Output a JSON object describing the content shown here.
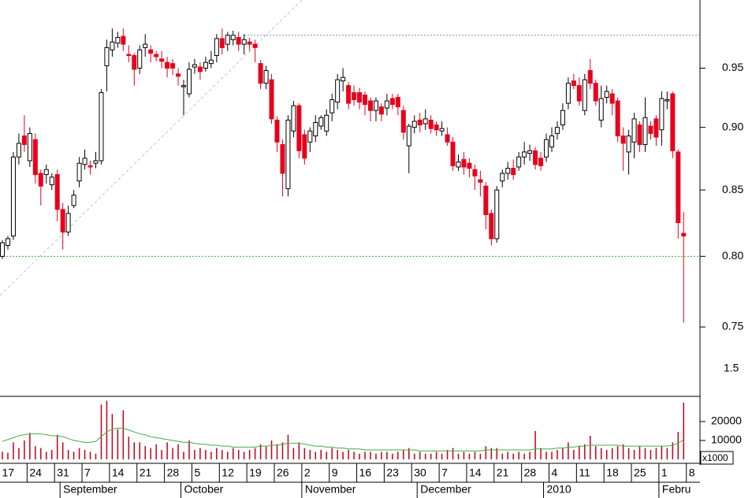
{
  "chart_data": {
    "type": "candlestick",
    "log_scale": true,
    "categories": [
      "17",
      null,
      null,
      null,
      null,
      "24",
      null,
      null,
      null,
      null,
      "31",
      null,
      null,
      null,
      null,
      "7",
      null,
      null,
      null,
      null,
      "14",
      null,
      null,
      null,
      null,
      "21",
      null,
      null,
      null,
      null,
      "28",
      null,
      null,
      null,
      null,
      "5",
      null,
      null,
      null,
      null,
      "12",
      null,
      null,
      null,
      null,
      "19",
      null,
      null,
      null,
      null,
      "26",
      null,
      null,
      null,
      null,
      "2",
      null,
      null,
      null,
      null,
      "9",
      null,
      null,
      null,
      null,
      "16",
      null,
      null,
      null,
      null,
      "23",
      null,
      null,
      null,
      null,
      "30",
      null,
      null,
      null,
      null,
      "7",
      null,
      null,
      null,
      null,
      "14",
      null,
      null,
      null,
      null,
      "21",
      null,
      null,
      null,
      null,
      "28",
      null,
      null,
      null,
      null,
      "4",
      null,
      null,
      null,
      null,
      "11",
      null,
      null,
      null,
      null,
      "18",
      null,
      null,
      null,
      null,
      "25",
      null,
      null,
      null,
      null,
      "1",
      null,
      null,
      null,
      null,
      "8"
    ],
    "month_labels": [
      null,
      null,
      null,
      null,
      null,
      null,
      null,
      null,
      null,
      null,
      null,
      "September",
      null,
      null,
      null,
      null,
      null,
      null,
      null,
      null,
      null,
      null,
      null,
      null,
      null,
      null,
      null,
      null,
      null,
      null,
      null,
      null,
      null,
      "October",
      null,
      null,
      null,
      null,
      null,
      null,
      null,
      null,
      null,
      null,
      null,
      null,
      null,
      null,
      null,
      null,
      null,
      null,
      null,
      null,
      null,
      "November",
      null,
      null,
      null,
      null,
      null,
      null,
      null,
      null,
      null,
      null,
      null,
      null,
      null,
      null,
      null,
      null,
      null,
      null,
      null,
      null,
      "December",
      null,
      null,
      null,
      null,
      null,
      null,
      null,
      null,
      null,
      null,
      null,
      null,
      null,
      null,
      null,
      null,
      null,
      null,
      null,
      null,
      null,
      null,
      "2010",
      null,
      null,
      null,
      null,
      null,
      null,
      null,
      null,
      null,
      null,
      null,
      null,
      null,
      null,
      null,
      null,
      null,
      null,
      null,
      null,
      "Febru",
      null,
      null,
      null,
      null,
      null
    ],
    "open": [
      0.8,
      0.808,
      0.815,
      0.876,
      0.893,
      0.873,
      0.89,
      0.863,
      0.862,
      0.854,
      0.862,
      0.835,
      0.818,
      0.838,
      0.857,
      0.87,
      0.869,
      0.871,
      0.873,
      0.952,
      0.966,
      0.972,
      0.978,
      0.962,
      0.961,
      0.95,
      0.968,
      0.966,
      0.962,
      0.958,
      0.955,
      0.954,
      0.945,
      0.934,
      0.928,
      0.951,
      0.951,
      0.95,
      0.954,
      0.961,
      0.976,
      0.971,
      0.975,
      0.977,
      0.971,
      0.973,
      0.971,
      0.954,
      0.937,
      0.94,
      0.906,
      0.886,
      0.851,
      0.897,
      0.918,
      0.894,
      0.888,
      0.893,
      0.901,
      0.897,
      0.912,
      0.921,
      0.939,
      0.935,
      0.929,
      0.929,
      0.927,
      0.922,
      0.914,
      0.917,
      0.916,
      0.924,
      0.925,
      0.914,
      0.885,
      0.9,
      0.906,
      0.903,
      0.906,
      0.902,
      0.897,
      0.894,
      0.888,
      0.868,
      0.874,
      0.871,
      0.866,
      0.858,
      0.853,
      0.832,
      0.813,
      0.857,
      0.863,
      0.867,
      0.868,
      0.876,
      0.879,
      0.881,
      0.875,
      0.876,
      0.884,
      0.895,
      0.902,
      0.92,
      0.939,
      0.935,
      0.914,
      0.948,
      0.937,
      0.906,
      0.925,
      0.928,
      0.922,
      0.893,
      0.88,
      0.888,
      0.902,
      0.886,
      0.901,
      0.907,
      0.898,
      0.922,
      0.928,
      0.88,
      0.817,
      null
    ],
    "high": [
      0.812,
      0.815,
      0.88,
      0.895,
      0.91,
      0.9,
      0.895,
      0.866,
      0.87,
      0.863,
      0.866,
      0.84,
      0.838,
      0.85,
      0.876,
      0.882,
      0.873,
      0.88,
      0.932,
      0.975,
      0.985,
      0.982,
      0.985,
      0.97,
      0.963,
      0.97,
      0.98,
      0.97,
      0.965,
      0.965,
      0.96,
      0.958,
      0.95,
      0.94,
      0.955,
      0.958,
      0.955,
      0.96,
      0.965,
      0.98,
      0.985,
      0.982,
      0.983,
      0.982,
      0.98,
      0.977,
      0.975,
      0.957,
      0.952,
      0.945,
      0.909,
      0.89,
      0.91,
      0.922,
      0.92,
      0.898,
      0.9,
      0.91,
      0.91,
      0.915,
      0.928,
      0.945,
      0.95,
      0.938,
      0.935,
      0.933,
      0.93,
      0.925,
      0.925,
      0.92,
      0.928,
      0.928,
      0.928,
      0.918,
      0.903,
      0.91,
      0.912,
      0.915,
      0.91,
      0.905,
      0.905,
      0.9,
      0.892,
      0.878,
      0.88,
      0.875,
      0.87,
      0.865,
      0.856,
      0.835,
      0.853,
      0.866,
      0.872,
      0.874,
      0.88,
      0.888,
      0.886,
      0.884,
      0.88,
      0.895,
      0.9,
      0.905,
      0.92,
      0.942,
      0.945,
      0.942,
      0.945,
      0.958,
      0.94,
      0.935,
      0.935,
      0.932,
      0.925,
      0.9,
      0.898,
      0.912,
      0.905,
      0.925,
      0.905,
      0.91,
      0.93,
      0.93,
      0.93,
      0.882,
      0.833,
      null
    ],
    "low": [
      0.798,
      0.805,
      0.812,
      0.87,
      0.88,
      0.868,
      0.855,
      0.838,
      0.855,
      0.85,
      0.826,
      0.805,
      0.815,
      0.836,
      0.852,
      0.866,
      0.862,
      0.867,
      0.87,
      0.93,
      0.96,
      0.968,
      0.965,
      0.955,
      0.935,
      0.945,
      0.96,
      0.955,
      0.956,
      0.95,
      0.942,
      0.944,
      0.935,
      0.91,
      0.925,
      0.945,
      0.94,
      0.947,
      0.95,
      0.955,
      0.962,
      0.965,
      0.97,
      0.965,
      0.962,
      0.965,
      0.955,
      0.932,
      0.932,
      0.903,
      0.88,
      0.845,
      0.845,
      0.892,
      0.875,
      0.87,
      0.88,
      0.888,
      0.898,
      0.893,
      0.905,
      0.915,
      0.93,
      0.915,
      0.918,
      0.915,
      0.91,
      0.905,
      0.905,
      0.905,
      0.91,
      0.915,
      0.91,
      0.89,
      0.863,
      0.895,
      0.896,
      0.898,
      0.895,
      0.893,
      0.893,
      0.885,
      0.865,
      0.865,
      0.862,
      0.86,
      0.85,
      0.845,
      0.82,
      0.808,
      0.81,
      0.852,
      0.858,
      0.858,
      0.865,
      0.87,
      0.873,
      0.866,
      0.865,
      0.872,
      0.88,
      0.89,
      0.898,
      0.915,
      0.932,
      0.918,
      0.91,
      0.932,
      0.918,
      0.9,
      0.92,
      0.91,
      0.888,
      0.865,
      0.862,
      0.875,
      0.88,
      0.88,
      0.89,
      0.885,
      0.885,
      0.915,
      0.875,
      0.813,
      0.753,
      null
    ],
    "close": [
      0.81,
      0.813,
      0.876,
      0.887,
      0.886,
      0.895,
      0.862,
      0.853,
      0.866,
      0.86,
      0.835,
      0.818,
      0.832,
      0.846,
      0.871,
      0.875,
      0.868,
      0.873,
      0.929,
      0.968,
      0.973,
      0.977,
      0.971,
      0.961,
      0.949,
      0.966,
      0.971,
      0.963,
      0.96,
      0.956,
      0.95,
      0.95,
      0.943,
      0.935,
      0.949,
      0.953,
      0.947,
      0.955,
      0.957,
      0.976,
      0.968,
      0.979,
      0.979,
      0.971,
      0.975,
      0.971,
      0.968,
      0.937,
      0.948,
      0.907,
      0.888,
      0.863,
      0.906,
      0.918,
      0.881,
      0.875,
      0.897,
      0.904,
      0.908,
      0.91,
      0.923,
      0.94,
      0.942,
      0.92,
      0.923,
      0.921,
      0.919,
      0.914,
      0.922,
      0.911,
      0.922,
      0.919,
      0.917,
      0.896,
      0.901,
      0.905,
      0.902,
      0.907,
      0.899,
      0.898,
      0.899,
      0.888,
      0.869,
      0.872,
      0.868,
      0.867,
      0.861,
      0.856,
      0.831,
      0.813,
      0.85,
      0.863,
      0.867,
      0.862,
      0.876,
      0.88,
      0.881,
      0.87,
      0.869,
      0.89,
      0.893,
      0.9,
      0.914,
      0.937,
      0.935,
      0.922,
      0.94,
      0.937,
      0.922,
      0.924,
      0.93,
      0.92,
      0.893,
      0.887,
      0.893,
      0.907,
      0.886,
      0.908,
      0.895,
      0.892,
      0.924,
      0.923,
      0.881,
      0.825,
      0.815,
      null
    ],
    "ylim": [
      0.704,
      1.011
    ],
    "yticks": [
      0.75,
      {
        "value": 0.8,
        "label": "0.80"
      },
      0.85,
      {
        "value": 0.9,
        "label": "0.90"
      },
      0.95
    ],
    "y_extra_label": "1.5",
    "hlines": [
      {
        "value": 0.979,
        "color": "#6a8fc8"
      },
      {
        "value": 0.8,
        "color": "#3cb043"
      }
    ],
    "up_color": "#ffffff",
    "down_color": "#e8001c",
    "volume": [
      4000,
      3500,
      9000,
      6000,
      10000,
      14000,
      7000,
      6000,
      4000,
      5000,
      13000,
      9000,
      5000,
      4000,
      6000,
      5000,
      4000,
      3000,
      29000,
      31000,
      24000,
      16000,
      26000,
      12000,
      9000,
      9000,
      7000,
      6000,
      8000,
      5000,
      9000,
      6000,
      8000,
      4000,
      10000,
      5000,
      6000,
      5000,
      4000,
      6000,
      5000,
      4000,
      6000,
      5000,
      4000,
      5000,
      6000,
      8000,
      7000,
      10000,
      8000,
      9000,
      13000,
      6000,
      9000,
      6000,
      5000,
      4000,
      5000,
      4000,
      6000,
      5000,
      4000,
      5000,
      4000,
      3000,
      4000,
      4000,
      3000,
      4000,
      4000,
      3000,
      4000,
      5000,
      6000,
      3000,
      4000,
      3000,
      3000,
      4000,
      3000,
      5000,
      6000,
      3000,
      4000,
      3000,
      4000,
      3000,
      7000,
      6000,
      6000,
      3000,
      4000,
      3000,
      4000,
      3000,
      4000,
      15000,
      6000,
      4000,
      4000,
      5000,
      6000,
      9000,
      5000,
      7000,
      8000,
      12500,
      7000,
      6000,
      5000,
      6000,
      7000,
      8000,
      6000,
      5000,
      7000,
      6000,
      5000,
      6000,
      7000,
      6000,
      9000,
      14500,
      30000,
      null
    ],
    "volume_ma": [
      9500,
      10500,
      11500,
      12500,
      13000,
      13500,
      13500,
      13500,
      13000,
      12500,
      12500,
      12000,
      11000,
      10000,
      9500,
      9000,
      9000,
      9500,
      12000,
      14500,
      16000,
      16500,
      16500,
      15500,
      14500,
      13500,
      13000,
      12000,
      11500,
      11000,
      10500,
      10000,
      9500,
      9000,
      9000,
      8500,
      8000,
      8000,
      7500,
      7500,
      7000,
      7000,
      6500,
      6500,
      6500,
      6500,
      6500,
      7000,
      7000,
      7500,
      7500,
      8000,
      8500,
      8500,
      8500,
      8000,
      7500,
      7000,
      7000,
      6500,
      6500,
      6000,
      6000,
      5500,
      5500,
      5500,
      5000,
      5000,
      5000,
      5000,
      5000,
      5000,
      5000,
      5000,
      5000,
      5000,
      4500,
      4500,
      4500,
      4500,
      4500,
      4500,
      4500,
      4500,
      4500,
      4500,
      4500,
      4500,
      5000,
      5000,
      5000,
      5000,
      5000,
      5000,
      5000,
      5000,
      5000,
      5500,
      5500,
      5500,
      5500,
      6000,
      6000,
      6500,
      6500,
      7000,
      7000,
      7500,
      7500,
      7500,
      7500,
      7500,
      7500,
      7000,
      7000,
      7000,
      7000,
      7000,
      7000,
      7000,
      7000,
      7000,
      7500,
      8500,
      10500,
      null
    ],
    "volume_color": "#c0001a",
    "volume_ma_color": "#3cb043",
    "volume_ylim": [
      0,
      33300
    ],
    "volume_yticks": [
      10000,
      20000
    ],
    "volume_unit": "x1000"
  }
}
